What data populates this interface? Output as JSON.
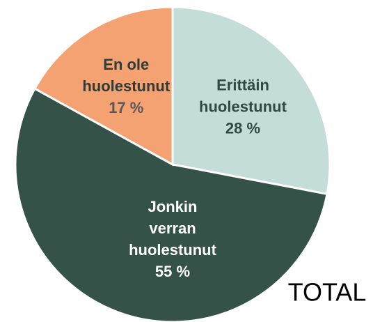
{
  "chart_data": {
    "type": "pie",
    "categories": [
      "Erittäin huolestunut",
      "Jonkin verran huolestunut",
      "En ole huolestunut"
    ],
    "values": [
      28,
      55,
      17
    ],
    "value_labels": [
      "28 %",
      "55 %",
      "17 %"
    ],
    "colors": [
      "#c5ddd9",
      "#355249",
      "#f4a272"
    ],
    "annotation": "TOTAL"
  }
}
